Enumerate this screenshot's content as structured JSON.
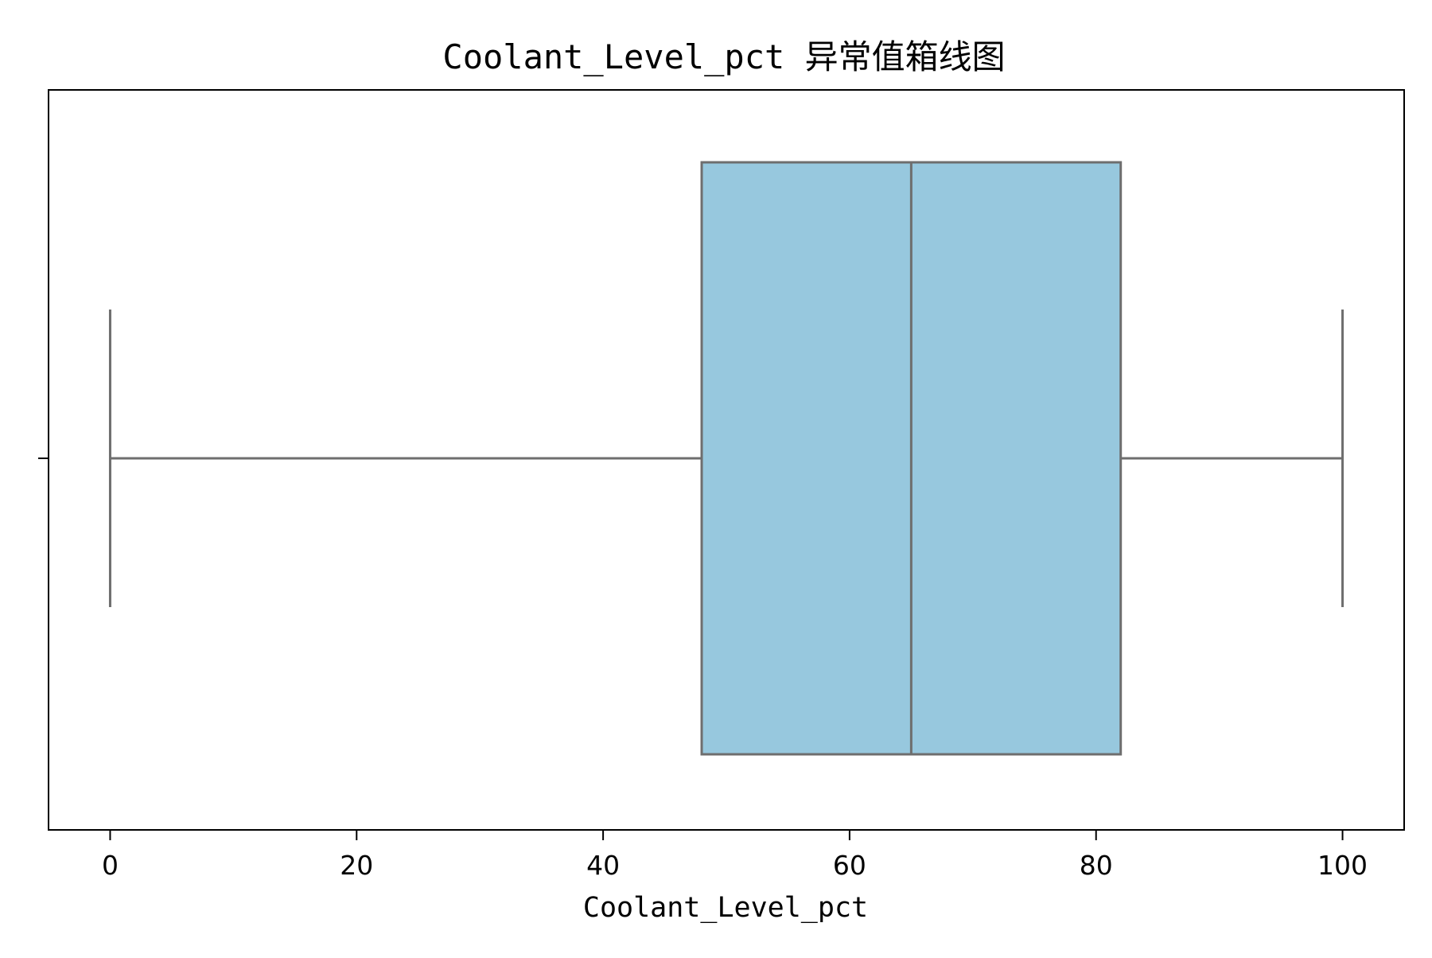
{
  "chart_data": {
    "type": "box",
    "title": "Coolant_Level_pct 异常值箱线图",
    "xlabel": "Coolant_Level_pct",
    "ylabel": "",
    "xlim": [
      -5,
      105
    ],
    "x_ticks": [
      0,
      20,
      40,
      60,
      80,
      100
    ],
    "x_tick_labels": [
      "0",
      "20",
      "40",
      "60",
      "80",
      "100"
    ],
    "orientation": "horizontal",
    "grid": false,
    "legend": "none",
    "box": {
      "whisker_low": 0,
      "q1": 48,
      "median": 65,
      "q3": 82,
      "whisker_high": 100,
      "outliers": []
    },
    "colors": {
      "box_fill": "#97C8DE",
      "box_edge": "#6E6E6E",
      "axis": "#000000"
    }
  }
}
